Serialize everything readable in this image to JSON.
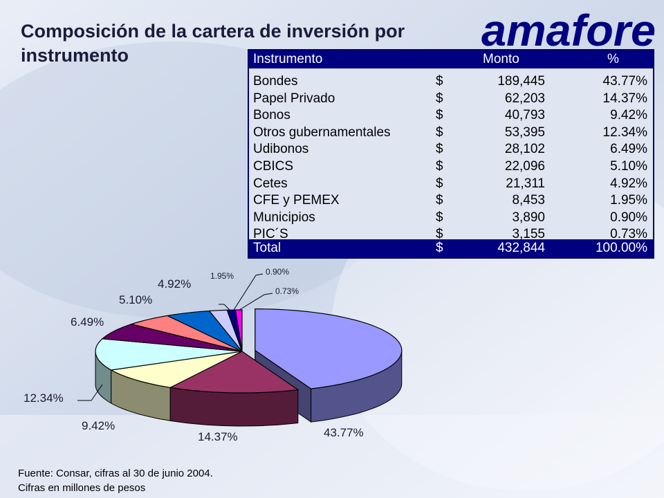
{
  "title": "Composición de la cartera de inversión por instrumento",
  "logo_text": "amafore",
  "table": {
    "headers": [
      "Instrumento",
      "Monto",
      "%"
    ],
    "rows": [
      {
        "instrumento": "Bondes",
        "moneda": "$",
        "monto": "189,445",
        "pct": "43.77%"
      },
      {
        "instrumento": "Papel Privado",
        "moneda": "$",
        "monto": "62,203",
        "pct": "14.37%"
      },
      {
        "instrumento": "Bonos",
        "moneda": "$",
        "monto": "40,793",
        "pct": "9.42%"
      },
      {
        "instrumento": "Otros gubernamentales",
        "moneda": "$",
        "monto": "53,395",
        "pct": "12.34%"
      },
      {
        "instrumento": "Udibonos",
        "moneda": "$",
        "monto": "28,102",
        "pct": "6.49%"
      },
      {
        "instrumento": "CBICS",
        "moneda": "$",
        "monto": "22,096",
        "pct": "5.10%"
      },
      {
        "instrumento": "Cetes",
        "moneda": "$",
        "monto": "21,311",
        "pct": "4.92%"
      },
      {
        "instrumento": "CFE y PEMEX",
        "moneda": "$",
        "monto": "8,453",
        "pct": "1.95%"
      },
      {
        "instrumento": "Municipios",
        "moneda": "$",
        "monto": "3,890",
        "pct": "0.90%"
      },
      {
        "instrumento": "PIC´S",
        "moneda": "$",
        "monto": "3,155",
        "pct": "0.73%"
      }
    ],
    "total": {
      "label": "Total",
      "moneda": "$",
      "monto": "432,844",
      "pct": "100.00%"
    }
  },
  "chart_data": {
    "type": "pie",
    "title": "",
    "categories": [
      "Bondes",
      "Papel Privado",
      "Bonos",
      "Otros gubernamentales",
      "Udibonos",
      "CBICS",
      "Cetes",
      "CFE y PEMEX",
      "Municipios",
      "PIC´S"
    ],
    "values": [
      43.77,
      14.37,
      9.42,
      12.34,
      6.49,
      5.1,
      4.92,
      1.95,
      0.9,
      0.73
    ],
    "labels": [
      "43.77%",
      "14.37%",
      "9.42%",
      "12.34%",
      "6.49%",
      "5.10%",
      "4.92%",
      "1.95%",
      "0.90%",
      "0.73%"
    ],
    "colors": [
      "#9999ff",
      "#993366",
      "#ffffcc",
      "#ccffff",
      "#660066",
      "#ff8080",
      "#0066cc",
      "#ccccff",
      "#000080",
      "#ff00ff"
    ],
    "exploded": [
      "Bondes"
    ],
    "three_d": true
  },
  "footer": {
    "line1": "Fuente: Consar, cifras al 30 de junio 2004.",
    "line2": "Cifras en millones de pesos"
  }
}
